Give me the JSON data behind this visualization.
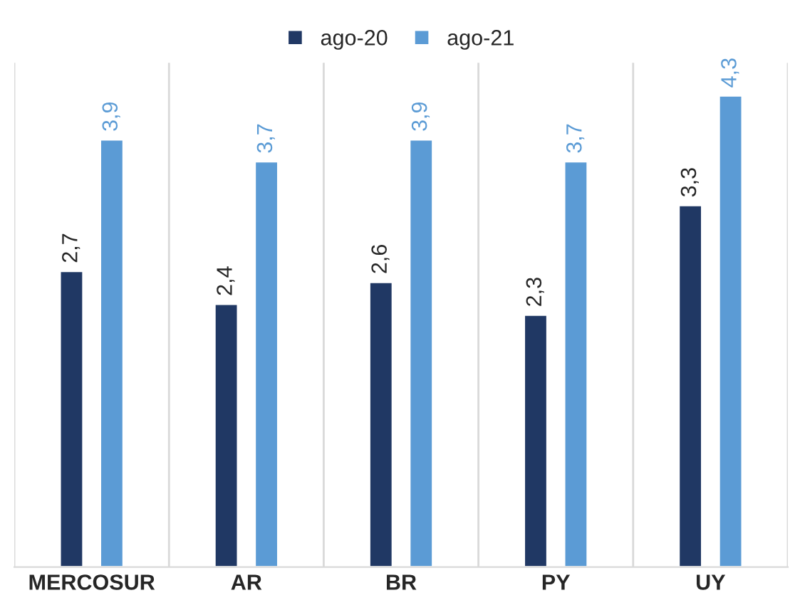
{
  "chart_data": {
    "type": "bar",
    "categories": [
      "MERCOSUR",
      "AR",
      "BR",
      "PY",
      "UY"
    ],
    "series": [
      {
        "name": "ago-20",
        "color": "#203864",
        "values": [
          2.7,
          2.4,
          2.6,
          2.3,
          3.3
        ],
        "value_labels": [
          "2,7",
          "2,4",
          "2,6",
          "2,3",
          "3,3"
        ]
      },
      {
        "name": "ago-21",
        "color": "#5b9bd5",
        "values": [
          3.9,
          3.7,
          3.9,
          3.7,
          4.3
        ],
        "value_labels": [
          "3,9",
          "3,7",
          "3,9",
          "3,7",
          "4,3"
        ]
      }
    ],
    "grid": "x",
    "legend": "top",
    "tick_labels": "x"
  }
}
